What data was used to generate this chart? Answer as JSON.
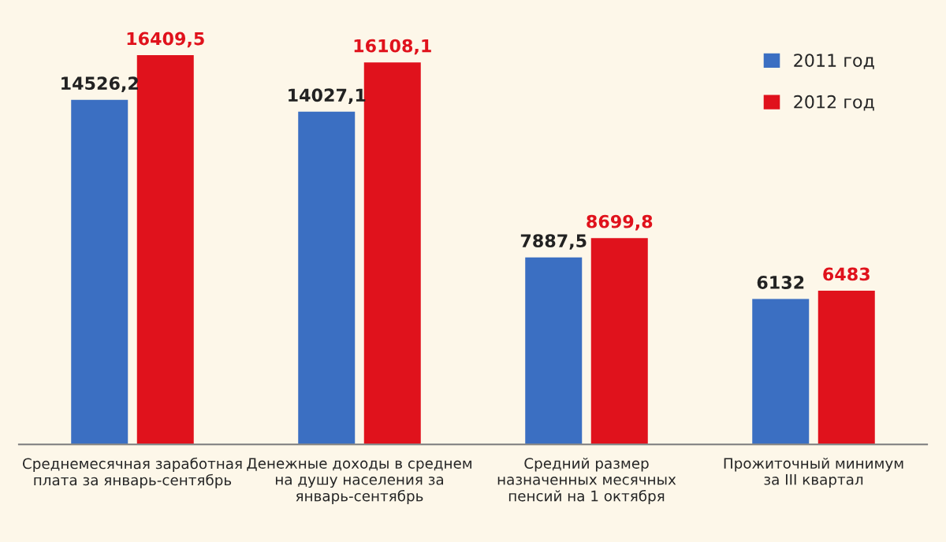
{
  "chart_data": {
    "type": "bar",
    "categories": [
      "Среднемесячная заработная\nплата за январь-сентябрь",
      "Денежные доходы в среднем\nна душу населения за\nянварь-сентябрь",
      "Средний размер\nназначенных месячных\nпенсий на 1 октября",
      "Прожиточный минимум\nза III квартал"
    ],
    "series": [
      {
        "name": "2011 год",
        "color": "#3b6fc2",
        "values": [
          14526.2,
          14027.1,
          7887.5,
          6132
        ],
        "value_labels": [
          "14526,2",
          "14027,1",
          "7887,5",
          "6132"
        ]
      },
      {
        "name": "2012 год",
        "color": "#e0121c",
        "values": [
          16409.5,
          16108.1,
          8699.8,
          6483
        ],
        "value_labels": [
          "16409,5",
          "16108,1",
          "8699,8",
          "6483"
        ]
      }
    ],
    "legend": "top right",
    "grid": false,
    "tick_labels": "x"
  }
}
